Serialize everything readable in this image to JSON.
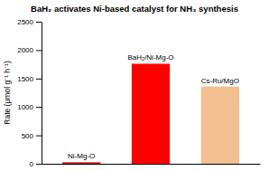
{
  "chart_data": {
    "type": "bar",
    "title": "BaH₂ activates Ni-based catalyst for NH₃ synthesis",
    "categories": [
      "Ni-Mg-O",
      "BaH₂/Ni-Mg-O",
      "Cs-Ru/MgO"
    ],
    "values": [
      25,
      1760,
      1360
    ],
    "colors": [
      "#cc0000",
      "#ff0000",
      "#f0c090"
    ],
    "ylabel": "Rate (μmol g⁻¹ h⁻¹)",
    "ylim": [
      0,
      2500
    ],
    "yticks": [
      0,
      500,
      1000,
      1500,
      2000,
      2500
    ],
    "grid": false,
    "tick_labels": "y"
  }
}
